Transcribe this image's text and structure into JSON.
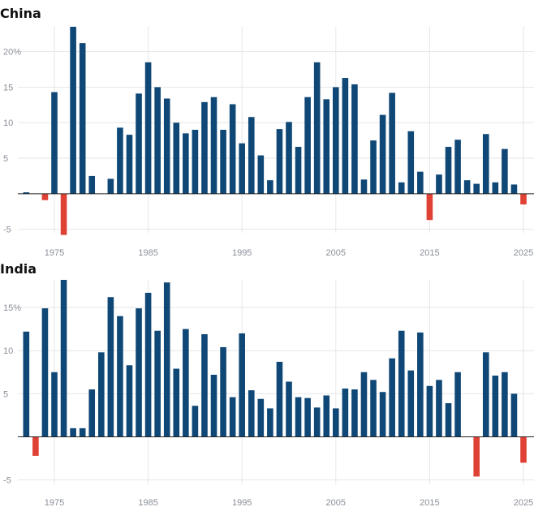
{
  "colors": {
    "positive": "#0f4876",
    "negative": "#df4234",
    "grid": "#e6e6e6",
    "zero_line": "#222222"
  },
  "chart_data": [
    {
      "type": "bar",
      "title": "China",
      "xlim": [
        1971,
        2026
      ],
      "ylim": [
        -5.5,
        23.5
      ],
      "yticks": [
        -5,
        0,
        5,
        10,
        15,
        20
      ],
      "ytick_labels": [
        "-5",
        "",
        "5",
        "10",
        "15",
        "20%"
      ],
      "xticks": [
        1975,
        1985,
        1995,
        2005,
        2015,
        2025
      ],
      "xtick_labels": [
        "1975",
        "1985",
        "1995",
        "2005",
        "2015",
        "2025"
      ],
      "grid": true,
      "x": [
        1972,
        1973,
        1974,
        1975,
        1976,
        1977,
        1978,
        1979,
        1980,
        1981,
        1982,
        1983,
        1984,
        1985,
        1986,
        1987,
        1988,
        1989,
        1990,
        1991,
        1992,
        1993,
        1994,
        1995,
        1996,
        1997,
        1998,
        1999,
        2000,
        2001,
        2002,
        2003,
        2004,
        2005,
        2006,
        2007,
        2008,
        2009,
        2010,
        2011,
        2012,
        2013,
        2014,
        2015,
        2016,
        2017,
        2018,
        2019,
        2020,
        2021,
        2022,
        2023,
        2024,
        2025
      ],
      "values": [
        0.2,
        0,
        -0.9,
        14.3,
        -5.8,
        23.5,
        21.2,
        2.5,
        0,
        2.1,
        9.3,
        8.3,
        14.1,
        18.5,
        15,
        13.4,
        10,
        8.5,
        9,
        12.9,
        13.6,
        9,
        12.6,
        7.1,
        10.8,
        5.4,
        1.9,
        9.1,
        10.1,
        6.6,
        13.6,
        18.5,
        13.3,
        15,
        16.3,
        15.4,
        2,
        7.5,
        11.1,
        14.2,
        1.6,
        8.8,
        3.1,
        -3.7,
        2.7,
        6.6,
        7.6,
        1.9,
        1.4,
        8.4,
        1.6,
        6.3,
        1.3,
        -1.5
      ]
    },
    {
      "type": "bar",
      "title": "India",
      "xlim": [
        1971,
        2026
      ],
      "ylim": [
        -5.5,
        18.2
      ],
      "yticks": [
        -5,
        0,
        5,
        10,
        15
      ],
      "ytick_labels": [
        "-5",
        "",
        "5",
        "10",
        "15%"
      ],
      "xticks": [
        1975,
        1985,
        1995,
        2005,
        2015,
        2025
      ],
      "xtick_labels": [
        "1975",
        "1985",
        "1995",
        "2005",
        "2015",
        "2025"
      ],
      "grid": true,
      "x": [
        1972,
        1973,
        1974,
        1975,
        1976,
        1977,
        1978,
        1979,
        1980,
        1981,
        1982,
        1983,
        1984,
        1985,
        1986,
        1987,
        1988,
        1989,
        1990,
        1991,
        1992,
        1993,
        1994,
        1995,
        1996,
        1997,
        1998,
        1999,
        2000,
        2001,
        2002,
        2003,
        2004,
        2005,
        2006,
        2007,
        2008,
        2009,
        2010,
        2011,
        2012,
        2013,
        2014,
        2015,
        2016,
        2017,
        2018,
        2019,
        2020,
        2021,
        2022,
        2023,
        2024,
        2025
      ],
      "values": [
        12.2,
        -2.2,
        14.9,
        7.5,
        18.2,
        1,
        1,
        5.5,
        9.8,
        16.2,
        14,
        8.3,
        14.9,
        16.7,
        12.3,
        17.9,
        7.9,
        12.5,
        3.6,
        11.9,
        7.2,
        10.4,
        4.6,
        12,
        5.4,
        4.4,
        3.3,
        8.7,
        6.4,
        4.6,
        4.5,
        3.4,
        4.8,
        3.3,
        5.6,
        5.5,
        7.5,
        6.6,
        5.2,
        9.1,
        12.3,
        7.7,
        12.1,
        5.9,
        6.6,
        3.9,
        7.5,
        0,
        -4.6,
        9.8,
        7.1,
        7.5,
        5,
        -3
      ]
    }
  ]
}
